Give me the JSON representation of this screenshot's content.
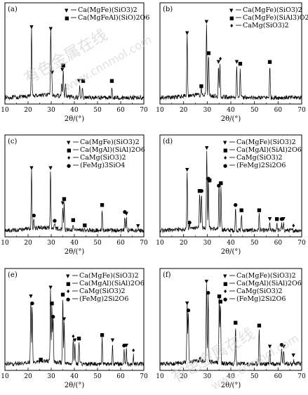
{
  "figure": {
    "xlabel": "2θ/(°)",
    "x_ticks": [
      10,
      20,
      30,
      40,
      50,
      60,
      70
    ],
    "watermark_text": [
      "有色金属在线",
      "www.cnnmol.com"
    ]
  },
  "chart_data": [
    {
      "type": "line",
      "panel": "(a)",
      "xlim": [
        10,
        70
      ],
      "xlabel": "2θ/(°)",
      "legend": [
        {
          "symbol": "▼",
          "label": "Ca(MgFe)(SiO3)2"
        },
        {
          "symbol": "■",
          "label": "Ca(MgFeAl)(SiO)2O6"
        }
      ],
      "series": [
        {
          "values": [
            [
              10,
              0.1
            ],
            [
              21.5,
              0.82
            ],
            [
              29.8,
              0.8
            ],
            [
              30.2,
              0.3
            ],
            [
              34.5,
              0.22
            ],
            [
              35.2,
              0.35
            ],
            [
              36.2,
              0.2
            ],
            [
              42.3,
              0.18
            ],
            [
              43.5,
              0.17
            ],
            [
              56.2,
              0.16
            ]
          ]
        }
      ],
      "markers": [
        {
          "x": 21.5,
          "y": 0.82,
          "symbol": "▼"
        },
        {
          "x": 29.8,
          "y": 0.8,
          "symbol": "▼"
        },
        {
          "x": 30.4,
          "y": 0.3,
          "symbol": "▼"
        },
        {
          "x": 34.8,
          "y": 0.33,
          "symbol": "▼"
        },
        {
          "x": 35.2,
          "y": 0.38,
          "symbol": "■"
        },
        {
          "x": 42.0,
          "y": 0.2,
          "symbol": "▼"
        },
        {
          "x": 43.8,
          "y": 0.2,
          "symbol": "■"
        },
        {
          "x": 56.2,
          "y": 0.2,
          "symbol": "■"
        }
      ]
    },
    {
      "type": "line",
      "panel": "(b)",
      "xlim": [
        10,
        70
      ],
      "xlabel": "2θ/(°)",
      "legend": [
        {
          "symbol": "▼",
          "label": "Ca(MgFe)(SiO3)2"
        },
        {
          "symbol": "■",
          "label": "Ca(MgFe)(SiAl3)O2"
        },
        {
          "symbol": "♦",
          "label": "CaMg(SiO3)2"
        }
      ],
      "series": [
        {
          "values": [
            [
              10,
              0.08
            ],
            [
              21.5,
              0.75
            ],
            [
              27.5,
              0.12
            ],
            [
              29.7,
              0.88
            ],
            [
              30.6,
              0.52
            ],
            [
              34.8,
              0.4
            ],
            [
              35.4,
              0.42
            ],
            [
              42.5,
              0.4
            ],
            [
              44.0,
              0.38
            ],
            [
              56.5,
              0.4
            ]
          ]
        }
      ],
      "markers": [
        {
          "x": 21.5,
          "y": 0.75,
          "symbol": "▼"
        },
        {
          "x": 27.5,
          "y": 0.14,
          "symbol": "■"
        },
        {
          "x": 29.7,
          "y": 0.88,
          "symbol": "▼"
        },
        {
          "x": 30.6,
          "y": 0.52,
          "symbol": "■"
        },
        {
          "x": 34.8,
          "y": 0.42,
          "symbol": "▼"
        },
        {
          "x": 35.6,
          "y": 0.45,
          "symbol": "♦"
        },
        {
          "x": 42.5,
          "y": 0.42,
          "symbol": "▼"
        },
        {
          "x": 44.0,
          "y": 0.4,
          "symbol": "■"
        },
        {
          "x": 56.5,
          "y": 0.42,
          "symbol": "■"
        }
      ]
    },
    {
      "type": "line",
      "panel": "(c)",
      "xlim": [
        10,
        70
      ],
      "xlabel": "2θ/(°)",
      "legend": [
        {
          "symbol": "▼",
          "label": "Ca(MgFe)(SiO3)2"
        },
        {
          "symbol": "■",
          "label": "Ca(MgAl)(SiAl)2O6"
        },
        {
          "symbol": "♦",
          "label": "CaMg(SiO3)2"
        },
        {
          "symbol": "●",
          "label": "(FeMg)3SiO4"
        }
      ],
      "series": [
        {
          "values": [
            [
              10,
              0.08
            ],
            [
              21.5,
              0.72
            ],
            [
              22.5,
              0.18
            ],
            [
              29.7,
              0.72
            ],
            [
              31.5,
              0.12
            ],
            [
              35.0,
              0.3
            ],
            [
              35.6,
              0.35
            ],
            [
              39.5,
              0.12
            ],
            [
              44.5,
              0.06
            ],
            [
              52.0,
              0.28
            ],
            [
              61.8,
              0.2
            ],
            [
              62.5,
              0.19
            ],
            [
              67.5,
              0.06
            ]
          ]
        }
      ],
      "markers": [
        {
          "x": 21.5,
          "y": 0.72,
          "symbol": "▼"
        },
        {
          "x": 22.5,
          "y": 0.18,
          "symbol": "●"
        },
        {
          "x": 29.7,
          "y": 0.72,
          "symbol": "▼"
        },
        {
          "x": 31.5,
          "y": 0.12,
          "symbol": "●"
        },
        {
          "x": 35.0,
          "y": 0.32,
          "symbol": "▼"
        },
        {
          "x": 35.6,
          "y": 0.37,
          "symbol": "■"
        },
        {
          "x": 39.5,
          "y": 0.13,
          "symbol": "■"
        },
        {
          "x": 44.5,
          "y": 0.07,
          "symbol": "■"
        },
        {
          "x": 52.0,
          "y": 0.3,
          "symbol": "■"
        },
        {
          "x": 61.8,
          "y": 0.22,
          "symbol": "●"
        },
        {
          "x": 62.5,
          "y": 0.2,
          "symbol": "▼"
        },
        {
          "x": 67.5,
          "y": 0.06,
          "symbol": "▼"
        }
      ]
    },
    {
      "type": "line",
      "panel": "(d)",
      "xlim": [
        10,
        70
      ],
      "xlabel": "2θ/(°)",
      "legend": [
        {
          "symbol": "▼",
          "label": "Ca(MgFe)(SiO3)2"
        },
        {
          "symbol": "■",
          "label": "Ca(MgAl)(SiAl)2O6"
        },
        {
          "symbol": "♦",
          "label": "CaMg(SiO3)2"
        },
        {
          "symbol": "●",
          "label": "(FeMg)2Si2O6"
        }
      ],
      "series": [
        {
          "values": [
            [
              10,
              0.08
            ],
            [
              21.5,
              0.7
            ],
            [
              22.5,
              0.1
            ],
            [
              26.8,
              0.45
            ],
            [
              27.6,
              0.45
            ],
            [
              29.8,
              0.95
            ],
            [
              30.5,
              0.6
            ],
            [
              35.0,
              0.55
            ],
            [
              35.8,
              0.55
            ],
            [
              42.0,
              0.3
            ],
            [
              44.5,
              0.22
            ],
            [
              52.0,
              0.23
            ],
            [
              56.5,
              0.12
            ],
            [
              59.5,
              0.12
            ],
            [
              61.5,
              0.12
            ],
            [
              62.3,
              0.12
            ],
            [
              66.5,
              0.05
            ]
          ]
        }
      ],
      "markers": [
        {
          "x": 21.5,
          "y": 0.7,
          "symbol": "▼"
        },
        {
          "x": 22.5,
          "y": 0.1,
          "symbol": "●"
        },
        {
          "x": 26.8,
          "y": 0.46,
          "symbol": "■"
        },
        {
          "x": 27.6,
          "y": 0.46,
          "symbol": "●"
        },
        {
          "x": 29.8,
          "y": 0.95,
          "symbol": "▼"
        },
        {
          "x": 30.5,
          "y": 0.6,
          "symbol": "●"
        },
        {
          "x": 31.0,
          "y": 0.58,
          "symbol": "■"
        },
        {
          "x": 34.9,
          "y": 0.52,
          "symbol": "●"
        },
        {
          "x": 35.8,
          "y": 0.55,
          "symbol": "■"
        },
        {
          "x": 42.0,
          "y": 0.3,
          "symbol": "●"
        },
        {
          "x": 44.5,
          "y": 0.24,
          "symbol": "■"
        },
        {
          "x": 52.0,
          "y": 0.24,
          "symbol": "■"
        },
        {
          "x": 56.5,
          "y": 0.14,
          "symbol": "▼"
        },
        {
          "x": 59.5,
          "y": 0.14,
          "symbol": "■"
        },
        {
          "x": 61.5,
          "y": 0.14,
          "symbol": "●"
        },
        {
          "x": 62.3,
          "y": 0.14,
          "symbol": "▼"
        },
        {
          "x": 66.5,
          "y": 0.06,
          "symbol": "♦"
        }
      ]
    },
    {
      "type": "line",
      "panel": "(e)",
      "xlim": [
        10,
        70
      ],
      "xlabel": "2θ/(°)",
      "legend": [
        {
          "symbol": "▼",
          "label": "Ca(MgFe)(SiO3)2"
        },
        {
          "symbol": "■",
          "label": "Ca(MgAl)(SiAl)2O6"
        },
        {
          "symbol": "♦",
          "label": "CaMg(SiO3)2"
        },
        {
          "symbol": "●",
          "label": "(FeMg)2Si2O6"
        }
      ],
      "series": [
        {
          "values": [
            [
              10,
              0.06
            ],
            [
              21.2,
              0.78
            ],
            [
              21.8,
              0.7
            ],
            [
              25.5,
              0.05
            ],
            [
              29.7,
              0.88
            ],
            [
              30.3,
              0.7
            ],
            [
              30.8,
              0.55
            ],
            [
              35.0,
              0.8
            ],
            [
              35.6,
              0.52
            ],
            [
              39.5,
              0.32
            ],
            [
              40.2,
              0.28
            ],
            [
              42.0,
              0.3
            ],
            [
              52.0,
              0.34
            ],
            [
              56.5,
              0.28
            ],
            [
              61.5,
              0.22
            ],
            [
              62.5,
              0.22
            ],
            [
              65.5,
              0.15
            ]
          ]
        }
      ],
      "markers": [
        {
          "x": 21.2,
          "y": 0.78,
          "symbol": "▼"
        },
        {
          "x": 21.8,
          "y": 0.7,
          "symbol": "●"
        },
        {
          "x": 25.5,
          "y": 0.06,
          "symbol": "■"
        },
        {
          "x": 29.7,
          "y": 0.88,
          "symbol": "▼"
        },
        {
          "x": 30.3,
          "y": 0.7,
          "symbol": "■"
        },
        {
          "x": 30.8,
          "y": 0.55,
          "symbol": "●"
        },
        {
          "x": 35.0,
          "y": 0.8,
          "symbol": "■"
        },
        {
          "x": 35.6,
          "y": 0.52,
          "symbol": "▼"
        },
        {
          "x": 39.5,
          "y": 0.32,
          "symbol": "♦"
        },
        {
          "x": 40.2,
          "y": 0.28,
          "symbol": "▼"
        },
        {
          "x": 42.0,
          "y": 0.3,
          "symbol": "■"
        },
        {
          "x": 52.0,
          "y": 0.34,
          "symbol": "■"
        },
        {
          "x": 56.5,
          "y": 0.28,
          "symbol": "▼"
        },
        {
          "x": 61.5,
          "y": 0.22,
          "symbol": "●"
        },
        {
          "x": 62.5,
          "y": 0.22,
          "symbol": "▼"
        },
        {
          "x": 65.5,
          "y": 0.16,
          "symbol": "♦"
        }
      ]
    },
    {
      "type": "line",
      "panel": "(f)",
      "xlim": [
        10,
        70
      ],
      "xlabel": "2θ/(°)",
      "legend": [
        {
          "symbol": "▼",
          "label": "Ca(MgFe)(SiO3)2"
        },
        {
          "symbol": "■",
          "label": "Ca(MgAl)(SiAl)2O6"
        },
        {
          "symbol": "♦",
          "label": "CaMg(SiO3)2"
        },
        {
          "symbol": "●",
          "label": "(FeMg)2Si2O6"
        }
      ],
      "series": [
        {
          "values": [
            [
              10,
              0.06
            ],
            [
              21.5,
              0.7
            ],
            [
              22.0,
              0.62
            ],
            [
              27.0,
              0.06
            ],
            [
              29.7,
              0.95
            ],
            [
              30.4,
              0.8
            ],
            [
              35.1,
              0.78
            ],
            [
              35.6,
              0.72
            ],
            [
              42.0,
              0.48
            ],
            [
              52.0,
              0.45
            ],
            [
              56.5,
              0.2
            ],
            [
              61.5,
              0.22
            ],
            [
              62.4,
              0.2
            ],
            [
              66.5,
              0.1
            ]
          ]
        }
      ],
      "markers": [
        {
          "x": 21.5,
          "y": 0.7,
          "symbol": "▼"
        },
        {
          "x": 22.0,
          "y": 0.62,
          "symbol": "●"
        },
        {
          "x": 27.0,
          "y": 0.07,
          "symbol": "♦"
        },
        {
          "x": 29.7,
          "y": 0.95,
          "symbol": "▼"
        },
        {
          "x": 30.4,
          "y": 0.82,
          "symbol": "●"
        },
        {
          "x": 35.1,
          "y": 0.78,
          "symbol": "■"
        },
        {
          "x": 35.6,
          "y": 0.72,
          "symbol": "■"
        },
        {
          "x": 42.0,
          "y": 0.48,
          "symbol": "■"
        },
        {
          "x": 52.0,
          "y": 0.45,
          "symbol": "■"
        },
        {
          "x": 56.5,
          "y": 0.21,
          "symbol": "▼"
        },
        {
          "x": 61.5,
          "y": 0.23,
          "symbol": "●"
        },
        {
          "x": 62.4,
          "y": 0.21,
          "symbol": "▼"
        },
        {
          "x": 66.5,
          "y": 0.11,
          "symbol": "▼"
        }
      ]
    }
  ]
}
